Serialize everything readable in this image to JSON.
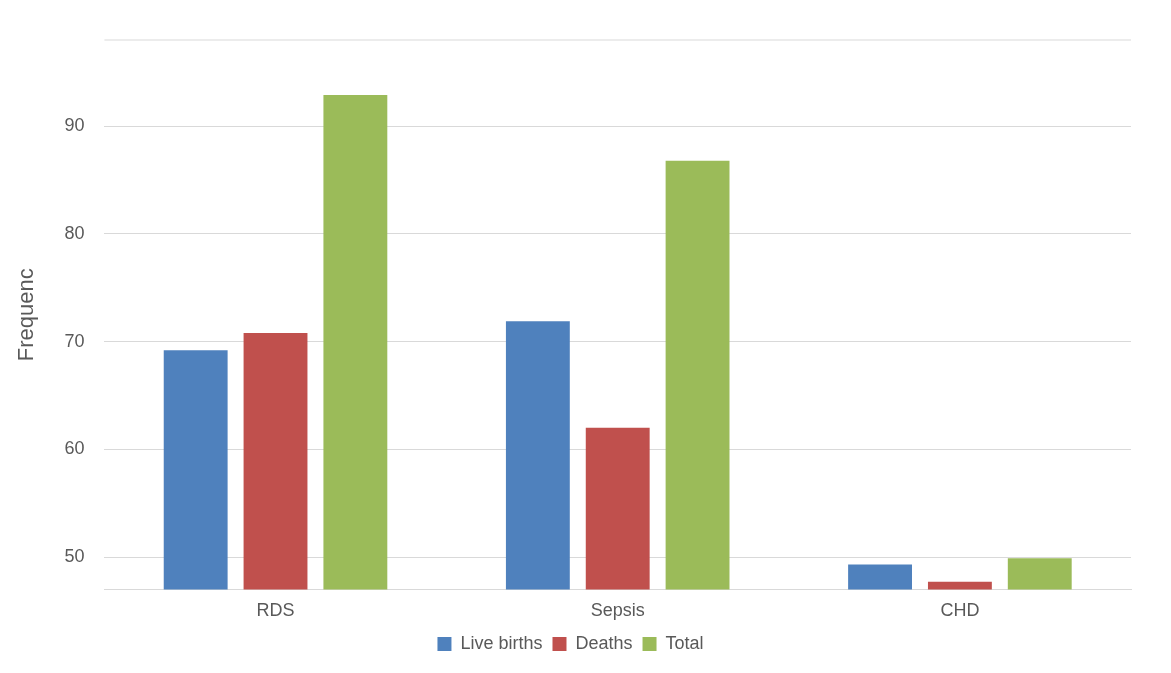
{
  "chart_data": {
    "type": "bar",
    "ylabel": "Frequenc",
    "categories": [
      "RDS",
      "Sepsis",
      "CHD"
    ],
    "series": [
      {
        "name": "Live births",
        "color": "#4f81bd",
        "values": [
          69.2,
          71.9,
          49.3
        ]
      },
      {
        "name": "Deaths",
        "color": "#c0504d",
        "values": [
          70.8,
          62.0,
          47.7
        ]
      },
      {
        "name": "Total",
        "color": "#9bbb59",
        "values": [
          92.9,
          86.8,
          49.9
        ]
      }
    ],
    "ylim": [
      47,
      98
    ],
    "yticks": [
      50,
      60,
      70,
      80,
      90
    ],
    "grid": "y",
    "legend": "bottom"
  }
}
